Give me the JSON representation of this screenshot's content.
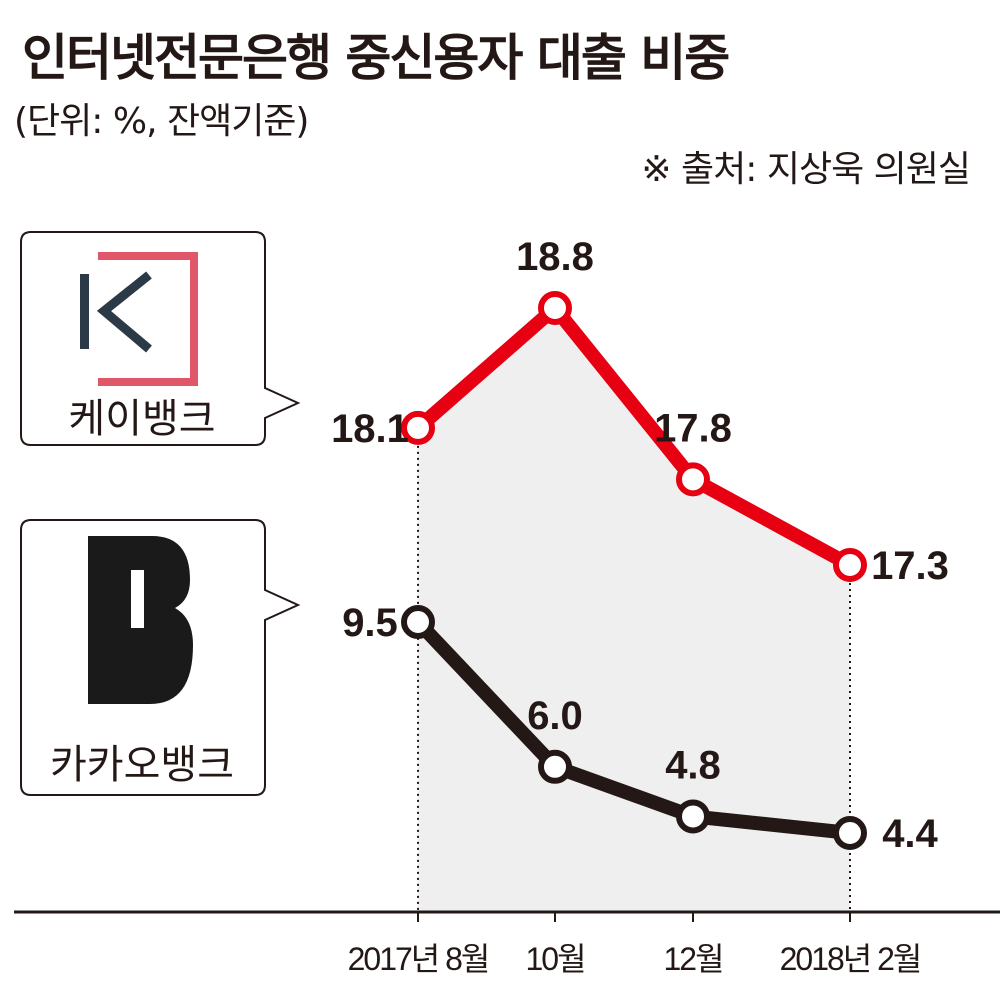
{
  "header": {
    "title": "인터넷전문은행 중신용자 대출 비중",
    "unit": "(단위: %, 잔액기준)",
    "source": "※ 출처: 지상욱 의원실"
  },
  "colors": {
    "kbank": "#e60012",
    "kakao": "#231815",
    "shade": "#efefef",
    "kbank_logo_pink": "#e2566a",
    "kbank_logo_navy": "#2b3a46"
  },
  "chart_data": {
    "type": "line",
    "title": "인터넷전문은행 중신용자 대출 비중",
    "xlabel": "",
    "ylabel": "%",
    "categories": [
      "2017년 8월",
      "10월",
      "12월",
      "2018년 2월"
    ],
    "series": [
      {
        "name": "케이뱅크",
        "values": [
          18.1,
          18.8,
          17.8,
          17.3
        ],
        "labels": [
          "18.1",
          "18.8",
          "17.8",
          "17.3"
        ]
      },
      {
        "name": "카카오뱅크",
        "values": [
          9.5,
          6.0,
          4.8,
          4.4
        ],
        "labels": [
          "9.5",
          "6.0",
          "4.8",
          "4.4"
        ]
      }
    ],
    "grid": false,
    "legend": "left"
  }
}
